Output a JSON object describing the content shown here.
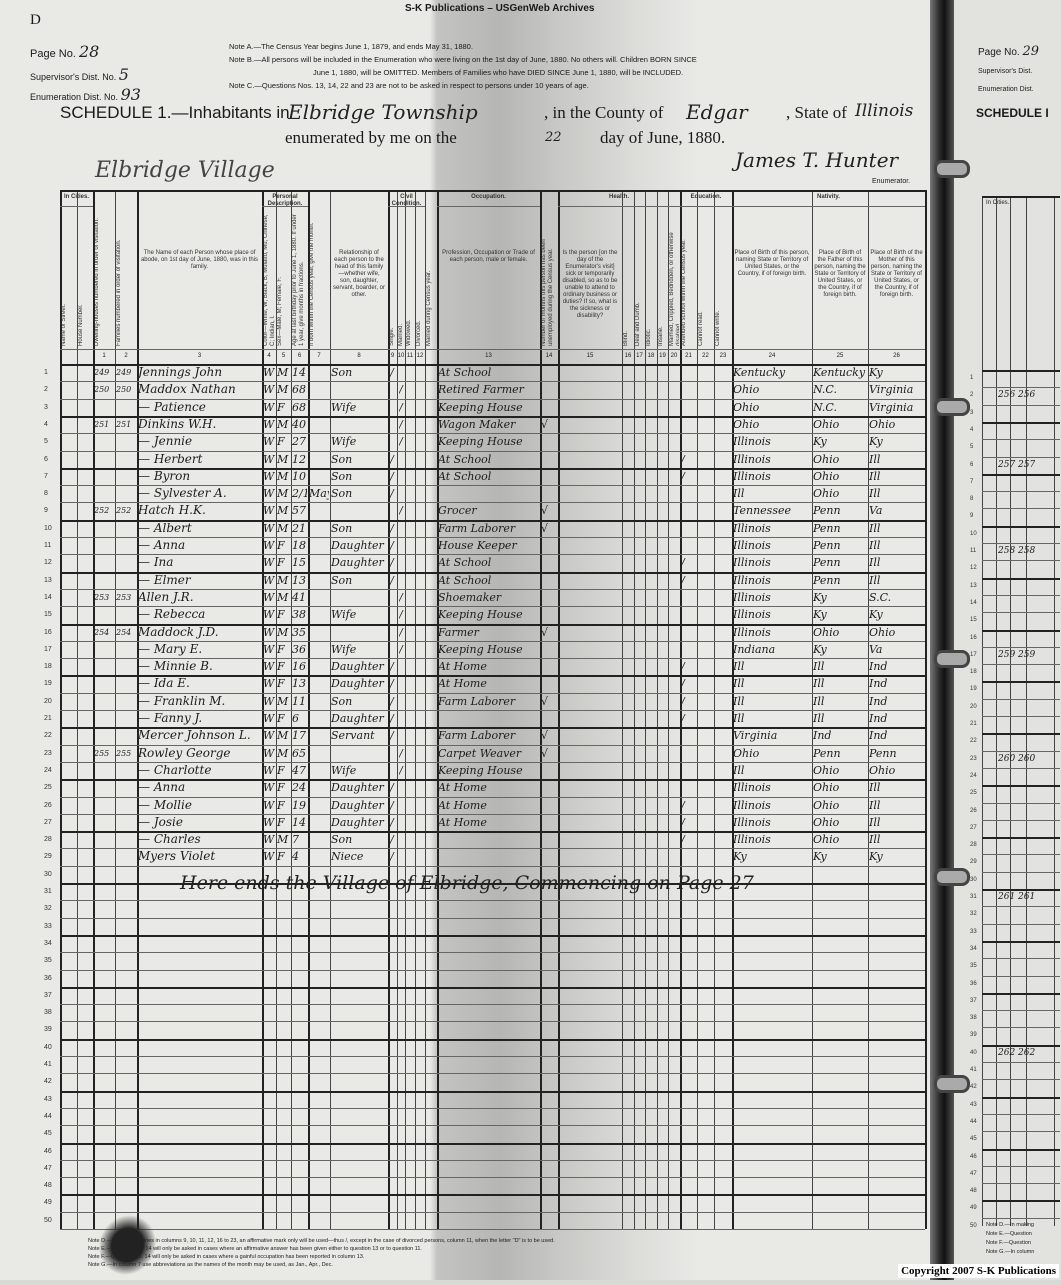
{
  "archive_header": "S-K Publications – USGenWeb Archives",
  "sheet_letter": "D",
  "page_info": {
    "page_label": "Page No.",
    "page_value": "28",
    "supervisor_label": "Supervisor's Dist. No.",
    "supervisor_value": "5",
    "enumeration_label": "Enumeration Dist. No.",
    "enumeration_value": "93"
  },
  "notes": [
    "Note A.—The Census Year begins June 1, 1879, and ends May 31, 1880.",
    "Note B.—All persons will be included in the Enumeration who were living on the 1st day of June, 1880. No others will. Children BORN SINCE",
    "June 1, 1880, will be OMITTED. Members of Families who have DIED SINCE June 1, 1880, will be INCLUDED.",
    "Note C.—Questions Nos. 13, 14, 22 and 23 are not to be asked in respect to persons under 10 years of age."
  ],
  "schedule": {
    "prefix": "SCHEDULE 1.—Inhabitants in",
    "township": "Elbridge Township",
    "county_label": ", in the County of",
    "county": "Edgar",
    "state_label": ", State of",
    "state": "Illinois",
    "enumerated_label": "enumerated by me on the",
    "day": "22",
    "date_suffix": "day of June, 1880.",
    "enumerator": "James T. Hunter",
    "enumerator_label": "Enumerator.",
    "locality": "Elbridge Village"
  },
  "column_groups": {
    "in_cities": "In Cities.",
    "personal": "Personal Description.",
    "civil": "Civil Condition.",
    "occupation": "Occupation.",
    "health": "Health.",
    "education": "Education.",
    "nativity": "Nativity."
  },
  "column_headers": [
    "Name of Street.",
    "House Number.",
    "Dwelling-houses numbered in order of visitation.",
    "Families numbered in order of visitation.",
    "The Name of each Person whose place of abode, on 1st day of June, 1880, was in this family.",
    "Color—White, W; Black, B; Mulatto, Mu; Chinese, C; Indian, I.",
    "Sex—Male, M; Female, F.",
    "Age at last birthday prior to June 1, 1880. If under 1 year, give months in fractions.",
    "If born within the Census year, give the month.",
    "Relationship of each person to the head of this family—whether wife, son, daughter, servant, boarder, or other.",
    "Single.",
    "Married.",
    "Widowed.",
    "Divorced.",
    "Married during Census year.",
    "Profession, Occupation or Trade of each person, male or female.",
    "Number of months this person has been unemployed during the Census year.",
    "Is the person [on the day of the Enumerator's visit] sick or temporarily disabled, so as to be unable to attend to ordinary business or duties? If so, what is the sickness or disability?",
    "Blind.",
    "Deaf and Dumb.",
    "Idiotic.",
    "Insane.",
    "Maimed, Crippled, Bedridden, or otherwise disabled.",
    "Attended school within the Census year.",
    "Cannot read.",
    "Cannot write.",
    "Place of Birth of this person, naming State or Territory of United States, or the Country, if of foreign birth.",
    "Place of Birth of the Father of this person, naming the State or Territory of United States, or the Country, if of foreign birth.",
    "Place of Birth of the Mother of this person, naming the State or Territory of United States, or the Country, if of foreign birth."
  ],
  "column_numbers": [
    "1",
    "2",
    "3",
    "4",
    "5",
    "6",
    "7",
    "8",
    "9",
    "10",
    "11",
    "12",
    "13",
    "14",
    "15",
    "16",
    "17",
    "18",
    "19",
    "20",
    "21",
    "22",
    "23",
    "24",
    "25",
    "26"
  ],
  "line_numbers": [
    "1",
    "2",
    "3",
    "4",
    "5",
    "6",
    "7",
    "8",
    "9",
    "10",
    "11",
    "12",
    "13",
    "14",
    "15",
    "16",
    "17",
    "18",
    "19",
    "20",
    "21",
    "22",
    "23",
    "24",
    "25",
    "26",
    "27",
    "28",
    "29",
    "30",
    "31",
    "32",
    "33",
    "34",
    "35",
    "36",
    "37",
    "38",
    "39",
    "40",
    "41",
    "42",
    "43",
    "44",
    "45",
    "46",
    "47",
    "48",
    "49",
    "50"
  ],
  "rows": [
    {
      "dwelling": "249",
      "family": "249",
      "name": "Jennings John",
      "color": "W",
      "sex": "M",
      "age": "14",
      "month": "",
      "relation": "Son",
      "civil": "single",
      "occupation": "At School",
      "unemployed": "",
      "school": "",
      "birthplace": "Kentucky",
      "father": "Kentucky",
      "mother": "Ky"
    },
    {
      "dwelling": "250",
      "family": "250",
      "name": "Maddox Nathan",
      "color": "W",
      "sex": "M",
      "age": "68",
      "month": "",
      "relation": "",
      "civil": "married",
      "occupation": "Retired Farmer",
      "unemployed": "",
      "school": "",
      "birthplace": "Ohio",
      "father": "N.C.",
      "mother": "Virginia"
    },
    {
      "dwelling": "",
      "family": "",
      "name": "— Patience",
      "color": "W",
      "sex": "F",
      "age": "68",
      "month": "",
      "relation": "Wife",
      "civil": "married",
      "occupation": "Keeping House",
      "unemployed": "",
      "school": "",
      "birthplace": "Ohio",
      "father": "N.C.",
      "mother": "Virginia"
    },
    {
      "dwelling": "251",
      "family": "251",
      "name": "Dinkins W.H.",
      "color": "W",
      "sex": "M",
      "age": "40",
      "month": "",
      "relation": "",
      "civil": "married",
      "occupation": "Wagon Maker",
      "unemployed": "√",
      "school": "",
      "birthplace": "Ohio",
      "father": "Ohio",
      "mother": "Ohio"
    },
    {
      "dwelling": "",
      "family": "",
      "name": "— Jennie",
      "color": "W",
      "sex": "F",
      "age": "27",
      "month": "",
      "relation": "Wife",
      "civil": "married",
      "occupation": "Keeping House",
      "unemployed": "",
      "school": "",
      "birthplace": "Illinois",
      "father": "Ky",
      "mother": "Ky"
    },
    {
      "dwelling": "",
      "family": "",
      "name": "— Herbert",
      "color": "W",
      "sex": "M",
      "age": "12",
      "month": "",
      "relation": "Son",
      "civil": "single",
      "occupation": "At School",
      "unemployed": "",
      "school": "/",
      "birthplace": "Illinois",
      "father": "Ohio",
      "mother": "Ill"
    },
    {
      "dwelling": "",
      "family": "",
      "name": "— Byron",
      "color": "W",
      "sex": "M",
      "age": "10",
      "month": "",
      "relation": "Son",
      "civil": "single",
      "occupation": "At School",
      "unemployed": "",
      "school": "/",
      "birthplace": "Illinois",
      "father": "Ohio",
      "mother": "Ill"
    },
    {
      "dwelling": "",
      "family": "",
      "name": "— Sylvester A.",
      "color": "W",
      "sex": "M",
      "age": "2/12",
      "month": "May",
      "relation": "Son",
      "civil": "single",
      "occupation": "",
      "unemployed": "",
      "school": "",
      "birthplace": "Ill",
      "father": "Ohio",
      "mother": "Ill"
    },
    {
      "dwelling": "252",
      "family": "252",
      "name": "Hatch H.K.",
      "color": "W",
      "sex": "M",
      "age": "57",
      "month": "",
      "relation": "",
      "civil": "married",
      "occupation": "Grocer",
      "unemployed": "√",
      "school": "",
      "birthplace": "Tennessee",
      "father": "Penn",
      "mother": "Va"
    },
    {
      "dwelling": "",
      "family": "",
      "name": "— Albert",
      "color": "W",
      "sex": "M",
      "age": "21",
      "month": "",
      "relation": "Son",
      "civil": "single",
      "occupation": "Farm Laborer",
      "unemployed": "√",
      "school": "",
      "birthplace": "Illinois",
      "father": "Penn",
      "mother": "Ill"
    },
    {
      "dwelling": "",
      "family": "",
      "name": "— Anna",
      "color": "W",
      "sex": "F",
      "age": "18",
      "month": "",
      "relation": "Daughter",
      "civil": "single",
      "occupation": "House Keeper",
      "unemployed": "",
      "school": "",
      "birthplace": "Illinois",
      "father": "Penn",
      "mother": "Ill"
    },
    {
      "dwelling": "",
      "family": "",
      "name": "— Ina",
      "color": "W",
      "sex": "F",
      "age": "15",
      "month": "",
      "relation": "Daughter",
      "civil": "single",
      "occupation": "At School",
      "unemployed": "",
      "school": "/",
      "birthplace": "Illinois",
      "father": "Penn",
      "mother": "Ill"
    },
    {
      "dwelling": "",
      "family": "",
      "name": "— Elmer",
      "color": "W",
      "sex": "M",
      "age": "13",
      "month": "",
      "relation": "Son",
      "civil": "single",
      "occupation": "At School",
      "unemployed": "",
      "school": "/",
      "birthplace": "Illinois",
      "father": "Penn",
      "mother": "Ill"
    },
    {
      "dwelling": "253",
      "family": "253",
      "name": "Allen J.R.",
      "color": "W",
      "sex": "M",
      "age": "41",
      "month": "",
      "relation": "",
      "civil": "married",
      "occupation": "Shoemaker",
      "unemployed": "",
      "school": "",
      "birthplace": "Illinois",
      "father": "Ky",
      "mother": "S.C."
    },
    {
      "dwelling": "",
      "family": "",
      "name": "— Rebecca",
      "color": "W",
      "sex": "F",
      "age": "38",
      "month": "",
      "relation": "Wife",
      "civil": "married",
      "occupation": "Keeping House",
      "unemployed": "",
      "school": "",
      "birthplace": "Illinois",
      "father": "Ky",
      "mother": "Ky"
    },
    {
      "dwelling": "254",
      "family": "254",
      "name": "Maddock J.D.",
      "color": "W",
      "sex": "M",
      "age": "35",
      "month": "",
      "relation": "",
      "civil": "married",
      "occupation": "Farmer",
      "unemployed": "√",
      "school": "",
      "birthplace": "Illinois",
      "father": "Ohio",
      "mother": "Ohio"
    },
    {
      "dwelling": "",
      "family": "",
      "name": "— Mary E.",
      "color": "W",
      "sex": "F",
      "age": "36",
      "month": "",
      "relation": "Wife",
      "civil": "married",
      "occupation": "Keeping House",
      "unemployed": "",
      "school": "",
      "birthplace": "Indiana",
      "father": "Ky",
      "mother": "Va"
    },
    {
      "dwelling": "",
      "family": "",
      "name": "— Minnie B.",
      "color": "W",
      "sex": "F",
      "age": "16",
      "month": "",
      "relation": "Daughter",
      "civil": "single",
      "occupation": "At Home",
      "unemployed": "",
      "school": "/",
      "birthplace": "Ill",
      "father": "Ill",
      "mother": "Ind"
    },
    {
      "dwelling": "",
      "family": "",
      "name": "— Ida E.",
      "color": "W",
      "sex": "F",
      "age": "13",
      "month": "",
      "relation": "Daughter",
      "civil": "single",
      "occupation": "At Home",
      "unemployed": "",
      "school": "/",
      "birthplace": "Ill",
      "father": "Ill",
      "mother": "Ind"
    },
    {
      "dwelling": "",
      "family": "",
      "name": "— Franklin M.",
      "color": "W",
      "sex": "M",
      "age": "11",
      "month": "",
      "relation": "Son",
      "civil": "single",
      "occupation": "Farm Laborer",
      "unemployed": "√",
      "school": "/",
      "birthplace": "Ill",
      "father": "Ill",
      "mother": "Ind"
    },
    {
      "dwelling": "",
      "family": "",
      "name": "— Fanny J.",
      "color": "W",
      "sex": "F",
      "age": "6",
      "month": "",
      "relation": "Daughter",
      "civil": "single",
      "occupation": "",
      "unemployed": "",
      "school": "/",
      "birthplace": "Ill",
      "father": "Ill",
      "mother": "Ind"
    },
    {
      "dwelling": "",
      "family": "",
      "name": "Mercer Johnson L.",
      "color": "W",
      "sex": "M",
      "age": "17",
      "month": "",
      "relation": "Servant",
      "civil": "single",
      "occupation": "Farm Laborer",
      "unemployed": "√",
      "school": "",
      "birthplace": "Virginia",
      "father": "Ind",
      "mother": "Ind"
    },
    {
      "dwelling": "255",
      "family": "255",
      "name": "Rowley George",
      "color": "W",
      "sex": "M",
      "age": "65",
      "month": "",
      "relation": "",
      "civil": "married",
      "occupation": "Carpet Weaver",
      "unemployed": "√",
      "school": "",
      "birthplace": "Ohio",
      "father": "Penn",
      "mother": "Penn"
    },
    {
      "dwelling": "",
      "family": "",
      "name": "— Charlotte",
      "color": "W",
      "sex": "F",
      "age": "47",
      "month": "",
      "relation": "Wife",
      "civil": "married",
      "occupation": "Keeping House",
      "unemployed": "",
      "school": "",
      "birthplace": "Ill",
      "father": "Ohio",
      "mother": "Ohio"
    },
    {
      "dwelling": "",
      "family": "",
      "name": "— Anna",
      "color": "W",
      "sex": "F",
      "age": "24",
      "month": "",
      "relation": "Daughter",
      "civil": "single",
      "occupation": "At Home",
      "unemployed": "",
      "school": "",
      "birthplace": "Illinois",
      "father": "Ohio",
      "mother": "Ill"
    },
    {
      "dwelling": "",
      "family": "",
      "name": "— Mollie",
      "color": "W",
      "sex": "F",
      "age": "19",
      "month": "",
      "relation": "Daughter",
      "civil": "single",
      "occupation": "At Home",
      "unemployed": "",
      "school": "/",
      "birthplace": "Illinois",
      "father": "Ohio",
      "mother": "Ill"
    },
    {
      "dwelling": "",
      "family": "",
      "name": "— Josie",
      "color": "W",
      "sex": "F",
      "age": "14",
      "month": "",
      "relation": "Daughter",
      "civil": "single",
      "occupation": "At Home",
      "unemployed": "",
      "school": "/",
      "birthplace": "Illinois",
      "father": "Ohio",
      "mother": "Ill"
    },
    {
      "dwelling": "",
      "family": "",
      "name": "— Charles",
      "color": "W",
      "sex": "M",
      "age": "7",
      "month": "",
      "relation": "Son",
      "civil": "single",
      "occupation": "",
      "unemployed": "",
      "school": "/",
      "birthplace": "Illinois",
      "father": "Ohio",
      "mother": "Ill"
    },
    {
      "dwelling": "",
      "family": "",
      "name": "Myers Violet",
      "color": "W",
      "sex": "F",
      "age": "4",
      "month": "",
      "relation": "Niece",
      "civil": "single",
      "occupation": "",
      "unemployed": "",
      "school": "",
      "birthplace": "Ky",
      "father": "Ky",
      "mother": "Ky"
    }
  ],
  "closing_note": "Here ends the Village of Elbridge, Commencing on Page 27",
  "footer_notes": [
    "Note D.—In making entries in columns 9, 10, 11, 12, 16 to 23, an affirmative mark only will be used—thus /, except in the case of divorced persons, column 11, when the letter \"D\" is to be used.",
    "Note E.—Question No. 14 will only be asked in cases where an affirmative answer has been given either to question 13 or to question 11.",
    "Note F.—Question No. 14 will only be asked in cases where a gainful occupation has been reported in column 13.",
    "Note G.—In column 7 use abbreviations as the names of the month may be used, as Jan., Apr., Dec."
  ],
  "right_page": {
    "page_label": "Page No.",
    "page_value": "29",
    "supervisor_label": "Supervisor's Dist.",
    "enumeration_label": "Enumeration Dist.",
    "schedule_label": "SCHEDULE I",
    "in_cities": "In Cities.",
    "entries": [
      {
        "line": 2,
        "text": "256 256"
      },
      {
        "line": 6,
        "text": "257 257"
      },
      {
        "line": 11,
        "text": "258 258"
      },
      {
        "line": 17,
        "text": "259 259"
      },
      {
        "line": 23,
        "text": "260 260"
      },
      {
        "line": 31,
        "text": "261 261"
      },
      {
        "line": 40,
        "text": "262 262"
      }
    ],
    "footer_notes": [
      "Note D.—In making",
      "Note E.—Question",
      "Note F.—Question",
      "Note G.—In column"
    ]
  },
  "copyright": "Copyright 2007 S-K Publications"
}
